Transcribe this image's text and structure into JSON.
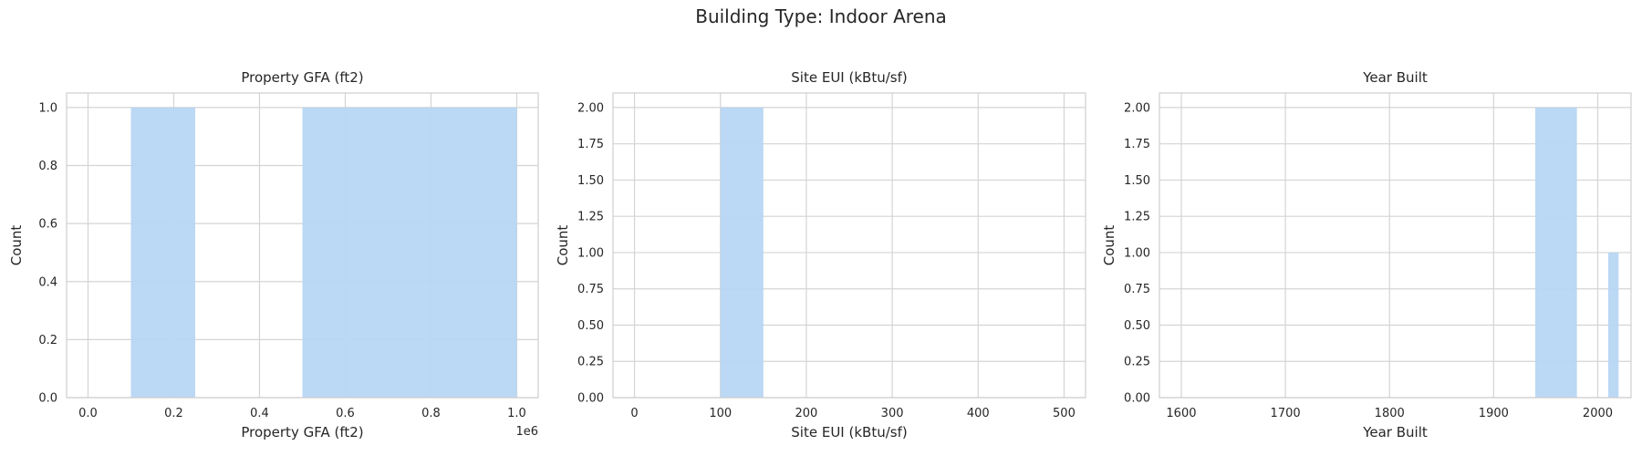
{
  "figure": {
    "title": "Building Type: Indoor Arena"
  },
  "style": {
    "bar_color": "#b7d6f4",
    "grid_color": "#d4d4d4",
    "spine_color": "#cfcfcf",
    "text_color": "#262626"
  },
  "chart_data": [
    {
      "type": "bar",
      "title": "Property GFA (ft2)",
      "xlabel": "Property GFA (ft2)",
      "ylabel": "Count",
      "x_offset_label": "1e6",
      "xlim": [
        -50000,
        1050000
      ],
      "ylim": [
        0,
        1.05
      ],
      "xticks": [
        0,
        200000,
        400000,
        600000,
        800000,
        1000000
      ],
      "xtick_labels": [
        "0.0",
        "0.2",
        "0.4",
        "0.6",
        "0.8",
        "1.0"
      ],
      "yticks": [
        0,
        0.2,
        0.4,
        0.6,
        0.8,
        1.0
      ],
      "ytick_labels": [
        "0.0",
        "0.2",
        "0.4",
        "0.6",
        "0.8",
        "1.0"
      ],
      "bins": [
        {
          "x0": 100000,
          "x1": 250000,
          "count": 1
        },
        {
          "x0": 500000,
          "x1": 1000000,
          "count": 1
        }
      ]
    },
    {
      "type": "bar",
      "title": "Site EUI (kBtu/sf)",
      "xlabel": "Site EUI (kBtu/sf)",
      "ylabel": "Count",
      "xlim": [
        -25,
        525
      ],
      "ylim": [
        0,
        2.1
      ],
      "xticks": [
        0,
        100,
        200,
        300,
        400,
        500
      ],
      "xtick_labels": [
        "0",
        "100",
        "200",
        "300",
        "400",
        "500"
      ],
      "yticks": [
        0,
        0.25,
        0.5,
        0.75,
        1.0,
        1.25,
        1.5,
        1.75,
        2.0
      ],
      "ytick_labels": [
        "0.00",
        "0.25",
        "0.50",
        "0.75",
        "1.00",
        "1.25",
        "1.50",
        "1.75",
        "2.00"
      ],
      "bins": [
        {
          "x0": 100,
          "x1": 150,
          "count": 2
        }
      ]
    },
    {
      "type": "bar",
      "title": "Year Built",
      "xlabel": "Year Built",
      "ylabel": "Count",
      "xlim": [
        1579,
        2032
      ],
      "ylim": [
        0,
        2.1
      ],
      "xticks": [
        1600,
        1700,
        1800,
        1900,
        2000
      ],
      "xtick_labels": [
        "1600",
        "1700",
        "1800",
        "1900",
        "2000"
      ],
      "yticks": [
        0,
        0.25,
        0.5,
        0.75,
        1.0,
        1.25,
        1.5,
        1.75,
        2.0
      ],
      "ytick_labels": [
        "0.00",
        "0.25",
        "0.50",
        "0.75",
        "1.00",
        "1.25",
        "1.50",
        "1.75",
        "2.00"
      ],
      "bins": [
        {
          "x0": 1940,
          "x1": 1980,
          "count": 2
        },
        {
          "x0": 2010,
          "x1": 2020,
          "count": 1
        }
      ]
    }
  ]
}
